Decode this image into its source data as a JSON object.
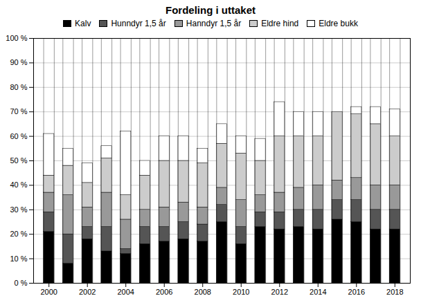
{
  "chart_data": {
    "type": "bar",
    "stacked": true,
    "title": "Fordeling i uttaket",
    "x": [
      2000,
      2001,
      2002,
      2003,
      2004,
      2005,
      2006,
      2007,
      2008,
      2009,
      2010,
      2011,
      2012,
      2013,
      2014,
      2015,
      2016,
      2017,
      2018
    ],
    "series": [
      {
        "name": "Kalv",
        "color": "#000000",
        "values": [
          21,
          8,
          18,
          13,
          12,
          16,
          17,
          18,
          17,
          25,
          16,
          23,
          22,
          23,
          22,
          26,
          25,
          22,
          22
        ]
      },
      {
        "name": "Hunndyr 1,5 år",
        "color": "#555555",
        "values": [
          8,
          12,
          5,
          10,
          2,
          7,
          6,
          7,
          7,
          7,
          7,
          6,
          7,
          7,
          8,
          8,
          9,
          8,
          8
        ]
      },
      {
        "name": "Hanndyr 1,5 år",
        "color": "#999999",
        "values": [
          8,
          16,
          8,
          14,
          12,
          7,
          8,
          8,
          7,
          7,
          11,
          7,
          8,
          9,
          10,
          8,
          9,
          10,
          10
        ]
      },
      {
        "name": "Eldre hind",
        "color": "#cccccc",
        "values": [
          7,
          12,
          10,
          14,
          10,
          14,
          19,
          17,
          18,
          18,
          19,
          14,
          23,
          21,
          20,
          28,
          26,
          25,
          20
        ]
      },
      {
        "name": "Eldre bukk",
        "color": "#ffffff",
        "values": [
          17,
          7,
          8,
          5,
          26,
          6,
          10,
          10,
          6,
          8,
          7,
          9,
          14,
          10,
          10,
          0,
          3,
          7,
          11
        ]
      }
    ],
    "xlim": [
      1999.2,
      2018.8
    ],
    "xticks": [
      2000,
      2002,
      2004,
      2006,
      2008,
      2010,
      2012,
      2014,
      2016,
      2018
    ],
    "ylim": [
      0,
      100
    ],
    "yticks": [
      {
        "value": 0,
        "label": "0 %"
      },
      {
        "value": 10,
        "label": "10 %"
      },
      {
        "value": 20,
        "label": "20 %"
      },
      {
        "value": 30,
        "label": "30 %"
      },
      {
        "value": 40,
        "label": "40 %"
      },
      {
        "value": 50,
        "label": "50 %"
      },
      {
        "value": 60,
        "label": "60 %"
      },
      {
        "value": 70,
        "label": "70 %"
      },
      {
        "value": 80,
        "label": "80 %"
      },
      {
        "value": 90,
        "label": "90 %"
      },
      {
        "value": 100,
        "label": "100 %"
      }
    ],
    "grid": true,
    "legend": "upper center"
  }
}
